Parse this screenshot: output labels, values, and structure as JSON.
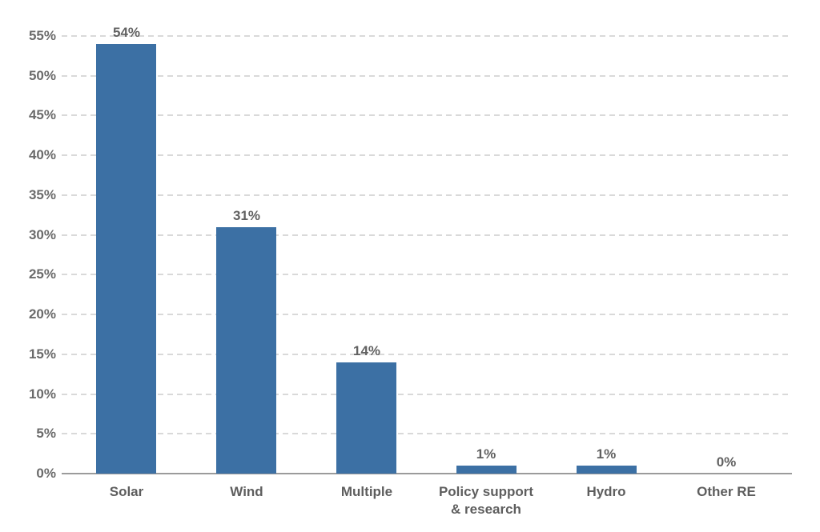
{
  "chart_data": {
    "type": "bar",
    "title": "",
    "xlabel": "",
    "ylabel": "",
    "categories": [
      "Solar",
      "Wind",
      "Multiple",
      "Policy support\n& research",
      "Hydro",
      "Other RE"
    ],
    "values": [
      54,
      31,
      14,
      1,
      1,
      0
    ],
    "value_labels": [
      "54%",
      "31%",
      "14%",
      "1%",
      "1%",
      "0%"
    ],
    "yticks": [
      0,
      5,
      10,
      15,
      20,
      25,
      30,
      35,
      40,
      45,
      50,
      55
    ],
    "ytick_labels": [
      "0%",
      "5%",
      "10%",
      "15%",
      "20%",
      "25%",
      "30%",
      "35%",
      "40%",
      "45%",
      "50%",
      "55%"
    ],
    "ylim": [
      0,
      55
    ],
    "grid": "horizontal-dashed",
    "legend": "none",
    "colors": {
      "bar": "#3c70a4",
      "axis_line": "#9b9b9b",
      "gridline": "#d9d9d9",
      "tick_label": "#6a6a6a",
      "value_label": "#616161",
      "category_label": "#5e5e5e",
      "background": "#ffffff"
    }
  }
}
